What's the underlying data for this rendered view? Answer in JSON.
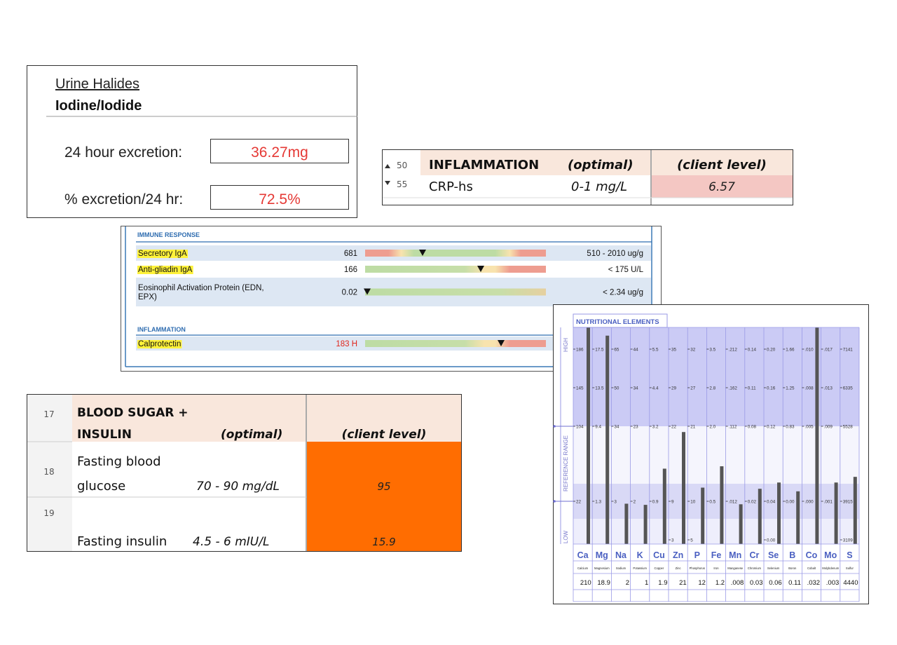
{
  "urine_halides": {
    "title": "Urine Halides",
    "subtitle": "Iodine/Iodide",
    "rows": [
      {
        "label": "24 hour excretion:",
        "value": "36.27mg"
      },
      {
        "label": "% excretion/24 hr:",
        "value": "72.5%"
      }
    ]
  },
  "inflammation_table": {
    "header": {
      "row": "50",
      "name": "INFLAMMATION",
      "optimal": "(optimal)",
      "client": "(client level)"
    },
    "rows": [
      {
        "row": "55",
        "name": "CRP-hs",
        "optimal": "0-1 mg/L",
        "client": "6.57"
      }
    ]
  },
  "immune_report": {
    "sections": [
      {
        "title": "IMMUNE RESPONSE",
        "rows": [
          {
            "name_lines": [
              "Secretory IgA"
            ],
            "value": "681",
            "range": "510 - 2010 ug/g",
            "highlight": true
          },
          {
            "name_lines": [
              "Anti-gliadin IgA"
            ],
            "value": "166",
            "range": "< 175 U/L",
            "highlight": true
          },
          {
            "name_lines": [
              "Eosinophil Activation Protein (EDN,",
              "EPX)"
            ],
            "value": "0.02",
            "range": "< 2.34 ug/g",
            "highlight": false
          }
        ]
      },
      {
        "title": "INFLAMMATION",
        "rows": [
          {
            "name_lines": [
              "Calprotectin"
            ],
            "value": "183 H",
            "highlight": true,
            "value_color": "#e0261c"
          }
        ]
      }
    ]
  },
  "blood_sugar_table": {
    "header": {
      "row": "17",
      "name_lines": [
        "BLOOD SUGAR +",
        "INSULIN"
      ],
      "optimal": "(optimal)",
      "client": "(client level)"
    },
    "rows": [
      {
        "row": "18",
        "name_lines": [
          "Fasting blood",
          "glucose"
        ],
        "optimal": "70 - 90 mg/dL",
        "client": "95"
      },
      {
        "row": "19",
        "name_lines": [
          "Fasting insulin"
        ],
        "optimal": "4.5 -  6 mIU/L",
        "client": "15.9"
      }
    ]
  },
  "nutritional_elements": {
    "title": "NUTRITIONAL  ELEMENTS",
    "axis_labels": {
      "high": "HIGH",
      "range": "REFERENCE  RANGE",
      "low": "LOW"
    },
    "elements": [
      {
        "symbol": "Ca",
        "name": "Calcium",
        "value": "210",
        "ticks": [
          "186",
          "145",
          "104",
          "22"
        ]
      },
      {
        "symbol": "Mg",
        "name": "Magnesium",
        "value": "18.9",
        "ticks": [
          "17.5",
          "13.5",
          "9.4",
          "1.3"
        ]
      },
      {
        "symbol": "Na",
        "name": "Sodium",
        "value": "2",
        "ticks": [
          "65",
          "50",
          "34",
          "3"
        ]
      },
      {
        "symbol": "K",
        "name": "Potassium",
        "value": "1",
        "ticks": [
          "44",
          "34",
          "23",
          "2"
        ]
      },
      {
        "symbol": "Cu",
        "name": "Copper",
        "value": "1.9",
        "ticks": [
          "5.5",
          "4.4",
          "3.2",
          "0.9"
        ]
      },
      {
        "symbol": "Zn",
        "name": "Zinc",
        "value": "21",
        "ticks": [
          "35",
          "29",
          "22",
          "9"
        ],
        "low": "3"
      },
      {
        "symbol": "P",
        "name": "Phosphorus",
        "value": "12",
        "ticks": [
          "32",
          "27",
          "21",
          "10"
        ],
        "low": "5"
      },
      {
        "symbol": "Fe",
        "name": "Iron",
        "value": "1.2",
        "ticks": [
          "3.5",
          "2.8",
          "2.0",
          "0.5"
        ]
      },
      {
        "symbol": "Mn",
        "name": "Manganese",
        "value": ".008",
        "ticks": [
          ".212",
          ".162",
          ".112",
          ".012"
        ]
      },
      {
        "symbol": "Cr",
        "name": "Chromium",
        "value": "0.03",
        "ticks": [
          "0.14",
          "0.11",
          "0.08",
          "0.02"
        ]
      },
      {
        "symbol": "Se",
        "name": "Selenium",
        "value": "0.06",
        "ticks": [
          "0.20",
          "0.16",
          "0.12",
          "0.04"
        ],
        "low": "0.00"
      },
      {
        "symbol": "B",
        "name": "Boron",
        "value": "0.11",
        "ticks": [
          "1.66",
          "1.25",
          "0.83",
          "0.00"
        ]
      },
      {
        "symbol": "Co",
        "name": "Cobalt",
        "value": ".032",
        "ticks": [
          ".010",
          ".008",
          ".005",
          ".000"
        ]
      },
      {
        "symbol": "Mo",
        "name": "Molybdenum",
        "value": ".003",
        "ticks": [
          ".017",
          ".013",
          ".009",
          ".001"
        ]
      },
      {
        "symbol": "S",
        "name": "Sulfur",
        "value": "4440",
        "ticks": [
          "7141",
          "6335",
          "5528",
          "3915"
        ],
        "low": "3109"
      }
    ]
  }
}
